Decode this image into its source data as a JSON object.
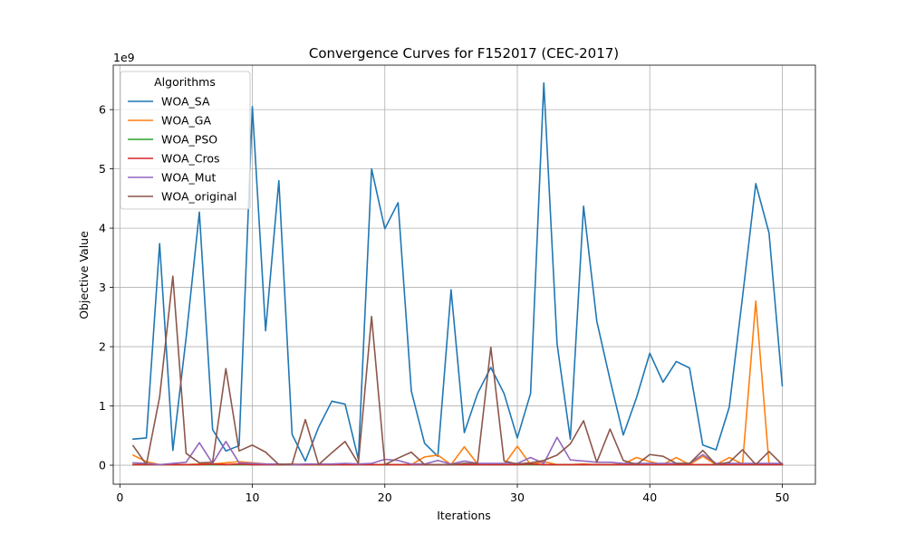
{
  "chart_data": {
    "type": "line",
    "title": "Convergence Curves for F152017 (CEC-2017)",
    "xlabel": "Iterations",
    "ylabel": "Objective Value",
    "y_offset_label": "1e9",
    "xlim": [
      -0.5,
      52.5
    ],
    "ylim": [
      -0.32,
      6.75
    ],
    "y_unit_multiplier": 1000000000,
    "x_ticks": [
      0,
      10,
      20,
      30,
      40,
      50
    ],
    "y_ticks": [
      0,
      1,
      2,
      3,
      4,
      5,
      6
    ],
    "grid": true,
    "legend": {
      "title": "Algorithms",
      "placement": "upper-left"
    },
    "x": [
      1,
      2,
      3,
      4,
      5,
      6,
      7,
      8,
      9,
      10,
      11,
      12,
      13,
      14,
      15,
      16,
      17,
      18,
      19,
      20,
      21,
      22,
      23,
      24,
      25,
      26,
      27,
      28,
      29,
      30,
      31,
      32,
      33,
      34,
      35,
      36,
      37,
      38,
      39,
      40,
      41,
      42,
      43,
      44,
      45,
      46,
      47,
      48,
      49,
      50
    ],
    "series": [
      {
        "name": "WOA_SA",
        "color": "#1f77b4",
        "values": [
          0.44,
          0.46,
          3.74,
          0.25,
          2.15,
          4.27,
          0.6,
          0.24,
          0.33,
          6.05,
          2.27,
          4.8,
          0.52,
          0.07,
          0.64,
          1.08,
          1.03,
          0.1,
          5.0,
          3.99,
          4.43,
          1.25,
          0.37,
          0.15,
          2.96,
          0.55,
          1.21,
          1.65,
          1.21,
          0.46,
          1.21,
          6.45,
          2.05,
          0.44,
          4.37,
          2.43,
          1.44,
          0.51,
          1.14,
          1.89,
          1.4,
          1.75,
          1.64,
          0.34,
          0.26,
          0.98,
          2.84,
          4.75,
          3.92,
          1.34
        ]
      },
      {
        "name": "WOA_GA",
        "color": "#ff7f0e",
        "values": [
          0.17,
          0.06,
          0.01,
          0.01,
          0.01,
          0.02,
          0.02,
          0.04,
          0.06,
          0.04,
          0.02,
          0.01,
          0.02,
          0.01,
          0.01,
          0.01,
          0.01,
          0.01,
          0.01,
          0.01,
          0.01,
          0.01,
          0.14,
          0.17,
          0.01,
          0.31,
          0.02,
          0.01,
          0.01,
          0.32,
          0.01,
          0.06,
          0.01,
          0.01,
          0.02,
          0.01,
          0.01,
          0.02,
          0.13,
          0.06,
          0.01,
          0.13,
          0.01,
          0.15,
          0.01,
          0.13,
          0.02,
          2.77,
          0.02,
          0.01
        ]
      },
      {
        "name": "WOA_PSO",
        "color": "#2ca02c",
        "values": [
          0.01,
          0.01,
          0.01,
          0.01,
          0.01,
          0.01,
          0.01,
          0.01,
          0.01,
          0.01,
          0.01,
          0.01,
          0.01,
          0.01,
          0.01,
          0.01,
          0.01,
          0.01,
          0.01,
          0.01,
          0.01,
          0.01,
          0.01,
          0.01,
          0.01,
          0.01,
          0.01,
          0.01,
          0.01,
          0.01,
          0.01,
          0.01,
          0.01,
          0.01,
          0.01,
          0.01,
          0.01,
          0.01,
          0.01,
          0.01,
          0.01,
          0.01,
          0.01,
          0.01,
          0.01,
          0.01,
          0.01,
          0.01,
          0.01,
          0.01
        ]
      },
      {
        "name": "WOA_Cros",
        "color": "#d62728",
        "values": [
          0.01,
          0.01,
          0.01,
          0.01,
          0.01,
          0.01,
          0.02,
          0.01,
          0.02,
          0.01,
          0.01,
          0.01,
          0.01,
          0.01,
          0.01,
          0.01,
          0.01,
          0.01,
          0.01,
          0.01,
          0.01,
          0.01,
          0.01,
          0.01,
          0.01,
          0.01,
          0.01,
          0.01,
          0.01,
          0.01,
          0.02,
          0.01,
          0.01,
          0.01,
          0.01,
          0.01,
          0.01,
          0.01,
          0.01,
          0.01,
          0.01,
          0.01,
          0.01,
          0.01,
          0.01,
          0.01,
          0.01,
          0.01,
          0.01,
          0.01
        ]
      },
      {
        "name": "WOA_Mut",
        "color": "#9467bd",
        "values": [
          0.04,
          0.03,
          0.01,
          0.03,
          0.05,
          0.38,
          0.03,
          0.4,
          0.04,
          0.03,
          0.02,
          0.02,
          0.01,
          0.02,
          0.02,
          0.02,
          0.03,
          0.02,
          0.03,
          0.1,
          0.08,
          0.02,
          0.02,
          0.08,
          0.02,
          0.07,
          0.03,
          0.03,
          0.03,
          0.03,
          0.13,
          0.03,
          0.47,
          0.09,
          0.07,
          0.05,
          0.05,
          0.03,
          0.03,
          0.03,
          0.03,
          0.03,
          0.03,
          0.18,
          0.03,
          0.03,
          0.03,
          0.03,
          0.03,
          0.03
        ]
      },
      {
        "name": "WOA_original",
        "color": "#8c564b",
        "values": [
          0.33,
          0.01,
          1.15,
          3.19,
          0.2,
          0.04,
          0.05,
          1.63,
          0.24,
          0.34,
          0.22,
          0.01,
          0.02,
          0.77,
          0.01,
          0.21,
          0.4,
          0.03,
          2.51,
          0.01,
          0.12,
          0.22,
          0.01,
          0.01,
          0.01,
          0.03,
          0.03,
          1.99,
          0.07,
          0.02,
          0.04,
          0.08,
          0.17,
          0.36,
          0.75,
          0.05,
          0.61,
          0.08,
          0.01,
          0.18,
          0.15,
          0.03,
          0.03,
          0.25,
          0.01,
          0.05,
          0.26,
          0.01,
          0.23,
          0.01
        ]
      }
    ]
  }
}
